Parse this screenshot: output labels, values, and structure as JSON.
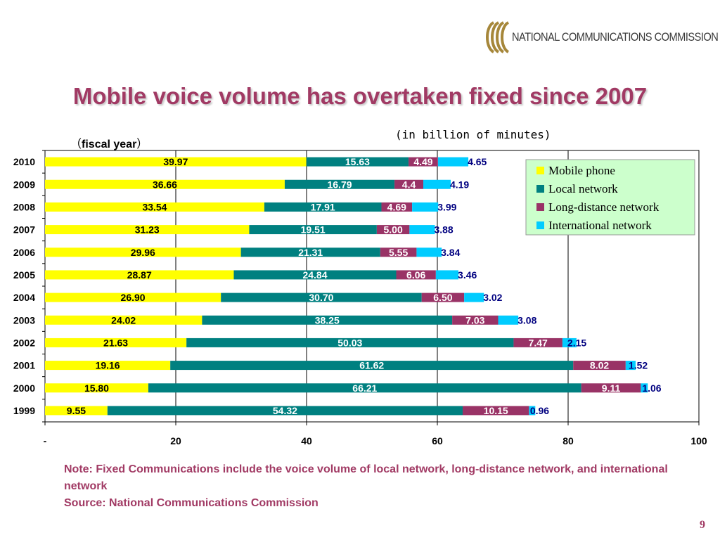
{
  "slide": {
    "title": "Mobile voice volume has overtaken fixed since 2007",
    "logo_text": "NATIONAL COMMUNICATIONS COMMISSION",
    "unit_label": "(in billion of minutes)",
    "period_open": "（",
    "period_label": "fiscal year",
    "period_close": "）",
    "note_line1": "Note: Fixed Communications include the voice volume of local network, long-distance network, and international network",
    "note_line2": "Source: National Communications Commission",
    "page_number": "9"
  },
  "colors": {
    "Mobile phone": "#ffff00",
    "Local network": "#008080",
    "Long-distance network": "#993366",
    "International network": "#00ccff",
    "title": "#a13a64",
    "legend_bg": "#ccffcc"
  },
  "chart_data": {
    "type": "bar",
    "orientation": "horizontal",
    "stacked": true,
    "categories": [
      "2010",
      "2009",
      "2008",
      "2007",
      "2006",
      "2005",
      "2004",
      "2003",
      "2002",
      "2001",
      "2000",
      "1999"
    ],
    "series": [
      {
        "name": "Mobile phone",
        "values": [
          39.97,
          36.66,
          33.54,
          31.23,
          29.96,
          28.87,
          26.9,
          24.02,
          21.63,
          19.16,
          15.8,
          9.55
        ],
        "labels": [
          "39.97",
          "36.66",
          "33.54",
          "31.23",
          "29.96",
          "28.87",
          "26.90",
          "24.02",
          "21.63",
          "19.16",
          "15.80",
          "9.55"
        ]
      },
      {
        "name": "Local network",
        "values": [
          15.63,
          16.79,
          17.91,
          19.51,
          21.31,
          24.84,
          30.7,
          38.25,
          50.03,
          61.62,
          66.21,
          54.32
        ],
        "labels": [
          "15.63",
          "16.79",
          "17.91",
          "19.51",
          "21.31",
          "24.84",
          "30.70",
          "38.25",
          "50.03",
          "61.62",
          "66.21",
          "54.32"
        ]
      },
      {
        "name": "Long-distance network",
        "values": [
          4.49,
          4.4,
          4.69,
          5.0,
          5.55,
          6.06,
          6.5,
          7.03,
          7.47,
          8.02,
          9.11,
          10.15
        ],
        "labels": [
          "4.49",
          "4.4",
          "4.69",
          "5.00",
          "5.55",
          "6.06",
          "6.50",
          "7.03",
          "7.47",
          "8.02",
          "9.11",
          "10.15"
        ]
      },
      {
        "name": "International network",
        "values": [
          4.65,
          4.19,
          3.99,
          3.88,
          3.84,
          3.46,
          3.02,
          3.08,
          2.15,
          1.52,
          1.06,
          0.96
        ],
        "labels": [
          "4.65",
          "4.19",
          "3.99",
          "3.88",
          "3.84",
          "3.46",
          "3.02",
          "3.08",
          "2.15",
          "1.52",
          "1.06",
          "0.96"
        ]
      }
    ],
    "xlim": [
      0,
      100
    ],
    "xticks": [
      0,
      20,
      40,
      60,
      80,
      100
    ],
    "xtick_labels": [
      "-",
      "20",
      "40",
      "60",
      "80",
      "100"
    ],
    "grid": "vertical",
    "legend_position": "top-right"
  }
}
